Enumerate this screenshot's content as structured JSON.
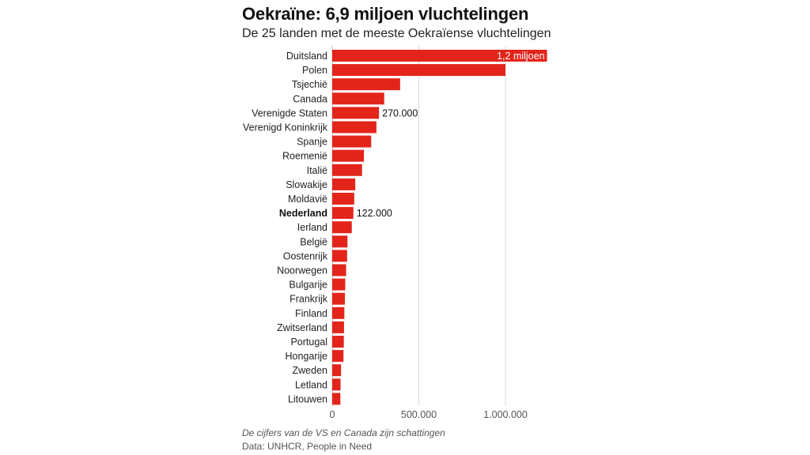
{
  "title": "Oekraïne: 6,9 miljoen vluchtelingen",
  "subtitle": "De 25 landen met de meeste Oekraïense vluchtelingen",
  "note": "De cijfers van de VS en Canada zijn schattingen",
  "source": "Data: UNHCR, People in Need",
  "colors": {
    "bar": "#e3241b",
    "grid": "#d9d9d9",
    "axis": "#bbbbbb"
  },
  "chart_data": {
    "type": "bar",
    "orientation": "horizontal",
    "title": "Oekraïne: 6,9 miljoen vluchtelingen",
    "subtitle": "De 25 landen met de meeste Oekraïense vluchtelingen",
    "xlabel": "",
    "ylabel": "",
    "xlim": [
      0,
      1250000
    ],
    "x_ticks": [
      0,
      500000,
      1000000
    ],
    "x_tick_labels": [
      "0",
      "500.000",
      "1.000.000"
    ],
    "grid": true,
    "highlight_category": "Nederland",
    "categories": [
      "Duitsland",
      "Polen",
      "Tsjechië",
      "Canada",
      "Verenigde Staten",
      "Verenigd Koninkrijk",
      "Spanje",
      "Roemenië",
      "Italië",
      "Slowakije",
      "Moldavië",
      "Nederland",
      "Ierland",
      "België",
      "Oostenrijk",
      "Noorwegen",
      "Bulgarije",
      "Frankrijk",
      "Finland",
      "Zwitserland",
      "Portugal",
      "Hongarije",
      "Zweden",
      "Letland",
      "Litouwen"
    ],
    "values": [
      1240000,
      1000000,
      392000,
      300000,
      270000,
      255000,
      225000,
      183000,
      172000,
      133000,
      127000,
      122000,
      113000,
      88000,
      86000,
      80000,
      75000,
      73000,
      70000,
      68000,
      67000,
      65000,
      51000,
      48000,
      47000
    ],
    "data_labels": [
      {
        "category": "Duitsland",
        "text": "1,2 miljoen",
        "position": "inside"
      },
      {
        "category": "Verenigde Staten",
        "text": "270.000",
        "position": "outside"
      },
      {
        "category": "Nederland",
        "text": "122.000",
        "position": "outside"
      }
    ]
  }
}
